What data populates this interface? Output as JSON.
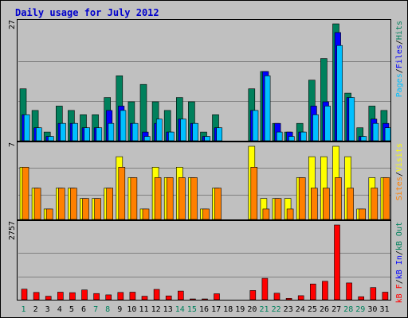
{
  "title": "Daily usage for July 2012",
  "colors": {
    "background": "#c0c0c0",
    "border": "#000000",
    "title": "#0000cc",
    "hits": "#00805c",
    "files": "#0000ff",
    "pages": "#00c0ff",
    "visits": "#ffff00",
    "sites": "#ff8000",
    "kb_f": "#ff0000",
    "kb_in": "#0000ff",
    "kb_out": "#00805c"
  },
  "chart_data": [
    {
      "type": "bar",
      "panel": "hits-files-pages",
      "ymax_label": "27",
      "legend": [
        "Pages",
        "Files",
        "Hits"
      ],
      "categories": [
        "1",
        "2",
        "3",
        "4",
        "5",
        "6",
        "7",
        "8",
        "9",
        "10",
        "11",
        "12",
        "13",
        "14",
        "15",
        "16",
        "17",
        "18",
        "19",
        "20",
        "21",
        "22",
        "23",
        "24",
        "25",
        "26",
        "27",
        "28",
        "29",
        "30",
        "31"
      ],
      "ymax": 27,
      "series": [
        {
          "name": "Hits",
          "values": [
            12,
            7,
            2,
            8,
            7,
            6,
            6,
            10,
            15,
            9,
            13,
            9,
            7,
            10,
            9,
            2,
            6,
            0,
            0,
            12,
            16,
            4,
            2,
            4,
            14,
            19,
            27,
            11,
            3,
            8,
            7
          ]
        },
        {
          "name": "Files",
          "values": [
            6,
            3,
            1,
            4,
            4,
            3,
            3,
            7,
            8,
            4,
            2,
            4,
            2,
            5,
            4,
            1,
            3,
            0,
            0,
            7,
            16,
            4,
            2,
            2,
            8,
            9,
            25,
            10,
            1,
            5,
            4
          ]
        },
        {
          "name": "Pages",
          "values": [
            6,
            3,
            1,
            4,
            4,
            3,
            3,
            4,
            7,
            4,
            1,
            5,
            2,
            5,
            4,
            1,
            3,
            0,
            0,
            7,
            15,
            2,
            1,
            2,
            6,
            8,
            22,
            10,
            1,
            4,
            3
          ]
        }
      ]
    },
    {
      "type": "bar",
      "panel": "visits-sites",
      "ymax_label": "7",
      "legend": [
        "Sites",
        "Visits"
      ],
      "categories": [
        "1",
        "2",
        "3",
        "4",
        "5",
        "6",
        "7",
        "8",
        "9",
        "10",
        "11",
        "12",
        "13",
        "14",
        "15",
        "16",
        "17",
        "18",
        "19",
        "20",
        "21",
        "22",
        "23",
        "24",
        "25",
        "26",
        "27",
        "28",
        "29",
        "30",
        "31"
      ],
      "ymax": 7,
      "series": [
        {
          "name": "Visits",
          "values": [
            5,
            3,
            1,
            3,
            3,
            2,
            2,
            3,
            6,
            4,
            1,
            5,
            4,
            5,
            4,
            1,
            3,
            0,
            0,
            7,
            2,
            2,
            2,
            4,
            6,
            6,
            7,
            6,
            1,
            4,
            4
          ]
        },
        {
          "name": "Sites",
          "values": [
            5,
            3,
            1,
            3,
            3,
            2,
            2,
            3,
            5,
            4,
            1,
            4,
            4,
            4,
            4,
            1,
            3,
            0,
            0,
            5,
            1,
            2,
            1,
            4,
            3,
            3,
            4,
            3,
            1,
            3,
            4
          ]
        }
      ]
    },
    {
      "type": "bar",
      "panel": "kbf-kbin-kbout",
      "ymax_label": "2757",
      "legend": [
        "kB F",
        "kB In",
        "kB Out"
      ],
      "categories": [
        "1",
        "2",
        "3",
        "4",
        "5",
        "6",
        "7",
        "8",
        "9",
        "10",
        "11",
        "12",
        "13",
        "14",
        "15",
        "16",
        "17",
        "18",
        "19",
        "20",
        "21",
        "22",
        "23",
        "24",
        "25",
        "26",
        "27",
        "28",
        "29",
        "30",
        "31"
      ],
      "ymax": 2757,
      "series": [
        {
          "name": "kB F",
          "values": [
            390,
            270,
            130,
            280,
            260,
            360,
            230,
            180,
            270,
            280,
            130,
            380,
            140,
            320,
            30,
            30,
            220,
            0,
            0,
            340,
            790,
            240,
            50,
            150,
            580,
            680,
            2757,
            620,
            110,
            450,
            280
          ]
        }
      ]
    }
  ]
}
